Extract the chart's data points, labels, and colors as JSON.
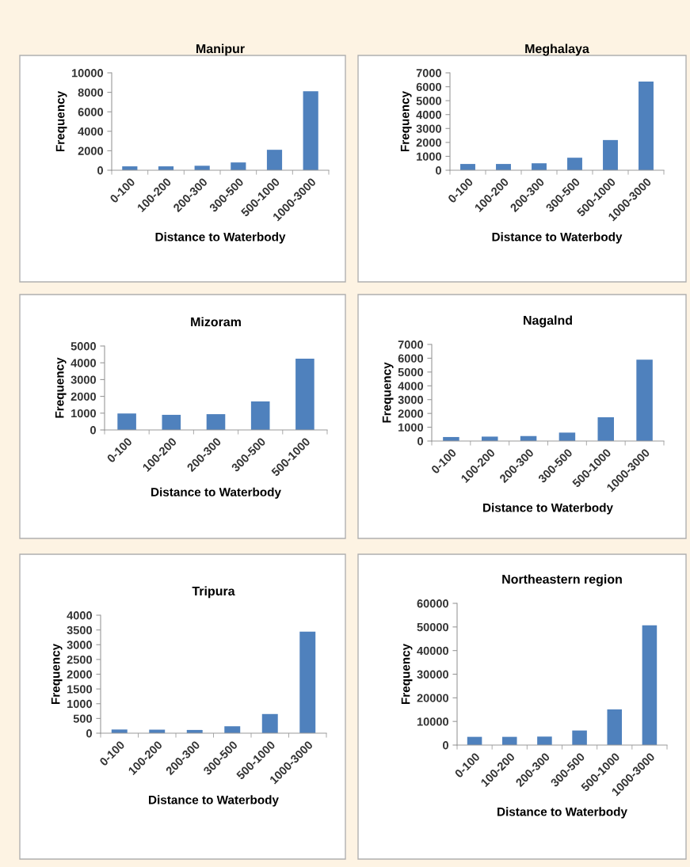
{
  "chart_data": [
    {
      "type": "bar",
      "title": "Manipur",
      "xlabel": "Distance to Waterbody",
      "ylabel": "Frequency",
      "categories": [
        "0-100",
        "100-200",
        "200-300",
        "300-500",
        "500-1000",
        "1000-3000"
      ],
      "values": [
        400,
        400,
        460,
        800,
        2100,
        8100
      ],
      "color": "#4f81bd",
      "ylim": [
        0,
        10000
      ],
      "yticks": [
        0,
        2000,
        4000,
        6000,
        8000,
        10000
      ],
      "grid": false
    },
    {
      "type": "bar",
      "title": "Meghalaya",
      "xlabel": "Distance to Waterbody",
      "ylabel": "Frequency",
      "categories": [
        "0-100",
        "100-200",
        "200-300",
        "300-500",
        "500-1000",
        "1000-3000"
      ],
      "values": [
        450,
        450,
        500,
        900,
        2170,
        6370
      ],
      "color": "#4f81bd",
      "ylim": [
        0,
        7000
      ],
      "yticks": [
        0,
        1000,
        2000,
        3000,
        4000,
        5000,
        6000,
        7000
      ],
      "grid": false
    },
    {
      "type": "bar",
      "title": "Mizoram",
      "xlabel": "Distance to Waterbody",
      "ylabel": "Frequency",
      "categories": [
        "0-100",
        "100-200",
        "200-300",
        "300-500",
        "500-1000"
      ],
      "values": [
        980,
        900,
        940,
        1700,
        4250
      ],
      "color": "#4f81bd",
      "ylim": [
        0,
        5000
      ],
      "yticks": [
        0,
        1000,
        2000,
        3000,
        4000,
        5000
      ],
      "grid": false
    },
    {
      "type": "bar",
      "title": "Nagalnd",
      "xlabel": "Distance to Waterbody",
      "ylabel": "Frequency",
      "categories": [
        "0-100",
        "100-200",
        "200-300",
        "300-500",
        "500-1000",
        "1000-3000"
      ],
      "values": [
        290,
        320,
        360,
        610,
        1720,
        5900
      ],
      "color": "#4f81bd",
      "ylim": [
        0,
        7000
      ],
      "yticks": [
        0,
        1000,
        2000,
        3000,
        4000,
        5000,
        6000,
        7000
      ],
      "grid": false
    },
    {
      "type": "bar",
      "title": "Tripura",
      "xlabel": "Distance to Waterbody",
      "ylabel": "Frequency",
      "categories": [
        "0-100",
        "100-200",
        "200-300",
        "300-500",
        "500-1000",
        "1000-3000"
      ],
      "values": [
        125,
        120,
        110,
        235,
        650,
        3440
      ],
      "color": "#4f81bd",
      "ylim": [
        0,
        4000
      ],
      "yticks": [
        0,
        500,
        1000,
        1500,
        2000,
        2500,
        3000,
        3500,
        4000
      ],
      "grid": false
    },
    {
      "type": "bar",
      "title": "Northeastern region",
      "xlabel": "Distance to Waterbody",
      "ylabel": "Frequency",
      "categories": [
        "0-100",
        "100-200",
        "200-300",
        "300-500",
        "500-1000",
        "1000-3000"
      ],
      "values": [
        3480,
        3480,
        3590,
        6170,
        15100,
        50700
      ],
      "color": "#4f81bd",
      "ylim": [
        0,
        60000
      ],
      "yticks": [
        0,
        10000,
        20000,
        30000,
        40000,
        50000,
        60000
      ],
      "grid": false
    }
  ]
}
